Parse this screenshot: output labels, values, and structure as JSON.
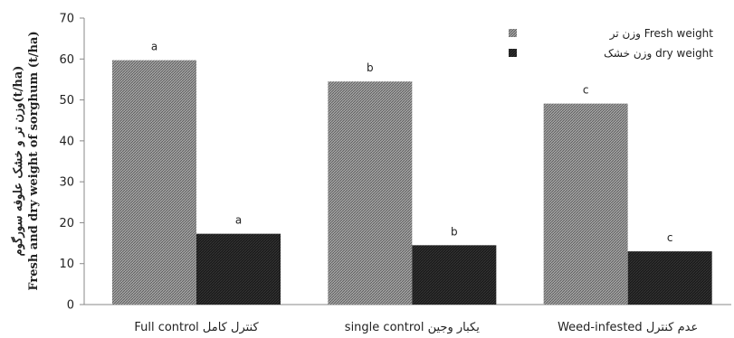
{
  "chart_data": {
    "type": "bar",
    "categories": [
      "Full control کنترل کامل",
      "single control یکبار وجین",
      "Weed-infested  عدم کنترل"
    ],
    "series": [
      {
        "name": "وزن تر Fresh weight",
        "values": [
          59.7,
          54.5,
          49.1
        ],
        "letters": [
          "a",
          "b",
          "c"
        ],
        "color": "#8c8c8c"
      },
      {
        "name": "وزن خشک dry weight",
        "values": [
          17.3,
          14.5,
          13.0
        ],
        "letters": [
          "a",
          "b",
          "c"
        ],
        "color": "#1a1a1a"
      }
    ],
    "ylabel_line1": "وزن تر و خشک علوفه سورگوم(t/ha)",
    "ylabel_line2": "Fresh  and dry weight of sorghum (t/ha)",
    "ylim": [
      0,
      70
    ],
    "yticks": [
      0,
      10,
      20,
      30,
      40,
      50,
      60,
      70
    ],
    "legend_position": "top-right",
    "grid": false
  }
}
